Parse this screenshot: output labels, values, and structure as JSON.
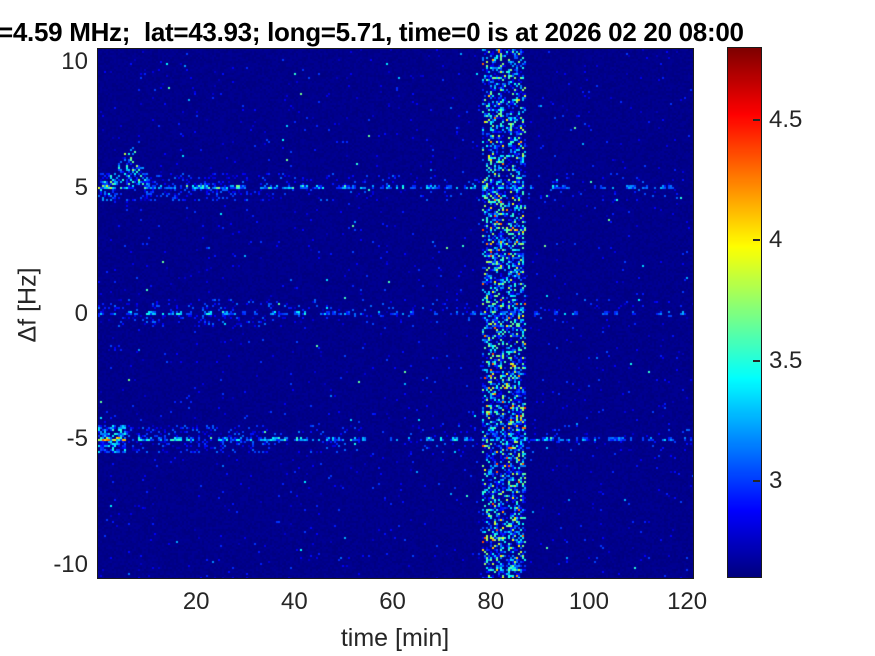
{
  "chart_data": {
    "type": "heatmap",
    "title": "=4.59 MHz;  lat=43.93; long=5.71, time=0 is at 2026 02 20 08:00",
    "xlabel": "time [min]",
    "ylabel": "Δf [Hz]",
    "xlim": [
      0,
      121.2
    ],
    "ylim": [
      -10.5,
      10.5
    ],
    "xticks": [
      20,
      40,
      60,
      80,
      100,
      120
    ],
    "yticks": [
      10,
      5,
      0,
      -5,
      -10
    ],
    "grid": false,
    "colorbar": {
      "colormap": "jet",
      "range": [
        2.6,
        4.8
      ],
      "ticks": [
        3,
        3.5,
        4,
        4.5
      ],
      "position": "right"
    },
    "background_value": 2.6,
    "features": {
      "horizontal_lines": [
        {
          "freq": 5,
          "core_halfwidth_hz": 0.09,
          "segments": [
            {
              "t0": 0,
              "t1": 4,
              "p": 0.95,
              "amp": 1.15
            },
            {
              "t0": 4,
              "t1": 30,
              "p": 0.8,
              "amp": 0.9
            },
            {
              "t0": 30,
              "t1": 65,
              "p": 0.55,
              "amp": 0.8
            },
            {
              "t0": 65,
              "t1": 95,
              "p": 0.5,
              "amp": 0.65
            },
            {
              "t0": 95,
              "t1": 118,
              "p": 0.45,
              "amp": 0.55
            },
            {
              "t0": 118,
              "t1": 121.2,
              "p": 0.18,
              "amp": 0.4
            }
          ],
          "hot": {
            "t1": 3.5,
            "p": 0.1,
            "vmin": 3.6,
            "vmax": 4.1
          }
        },
        {
          "freq": 0,
          "core_halfwidth_hz": 0.09,
          "segments": [
            {
              "t0": 0,
              "t1": 3,
              "p": 0.6,
              "amp": 0.9
            },
            {
              "t0": 3,
              "t1": 60,
              "p": 0.5,
              "amp": 0.75
            },
            {
              "t0": 60,
              "t1": 100,
              "p": 0.35,
              "amp": 0.5
            },
            {
              "t0": 100,
              "t1": 121.2,
              "p": 0.28,
              "amp": 0.4
            }
          ],
          "hot": {
            "t1": 0,
            "p": 0,
            "vmin": 0,
            "vmax": 0
          }
        },
        {
          "freq": -5,
          "core_halfwidth_hz": 0.09,
          "segments": [
            {
              "t0": 0,
              "t1": 5.5,
              "p": 0.97,
              "amp": 1.55
            },
            {
              "t0": 5.5,
              "t1": 30,
              "p": 0.72,
              "amp": 0.85
            },
            {
              "t0": 30,
              "t1": 55,
              "p": 0.6,
              "amp": 0.8
            },
            {
              "t0": 55,
              "t1": 63,
              "p": 0.25,
              "amp": 0.5
            },
            {
              "t0": 63,
              "t1": 100,
              "p": 0.58,
              "amp": 0.75
            },
            {
              "t0": 100,
              "t1": 121.2,
              "p": 0.32,
              "amp": 0.5
            }
          ],
          "hot": {
            "t1": 5.5,
            "p": 0.18,
            "vmin": 4.0,
            "vmax": 4.6
          }
        }
      ],
      "chirp_blip": {
        "above_freq": 5,
        "t0": 1.5,
        "t_peak": 6.8,
        "t1": 10.5,
        "h_start": 0.25,
        "h_peak": 1.75,
        "h_end": 0.3,
        "p": 0.42,
        "vmin": 2.9,
        "vamp": 0.95
      },
      "vertical_band": {
        "t0": 78.4,
        "t1": 87.1,
        "gap_t0": 82.8,
        "gap_t1": 83.4,
        "p_core": 0.46,
        "p_gap": 0.22,
        "edge_taper_min": 0.5,
        "vmin": 2.82,
        "vamp": 1.05,
        "hot_p": 0.02,
        "hot_vmin": 3.9,
        "hot_vamp": 0.5
      },
      "noise": {
        "base_jitter": 0.05,
        "faint_p": 0.015,
        "faint_vmin": 2.72,
        "faint_vamp": 0.3,
        "dot_p": 0.0015,
        "dot_vmin": 3.1,
        "dot_vamp": 0.6
      }
    }
  }
}
